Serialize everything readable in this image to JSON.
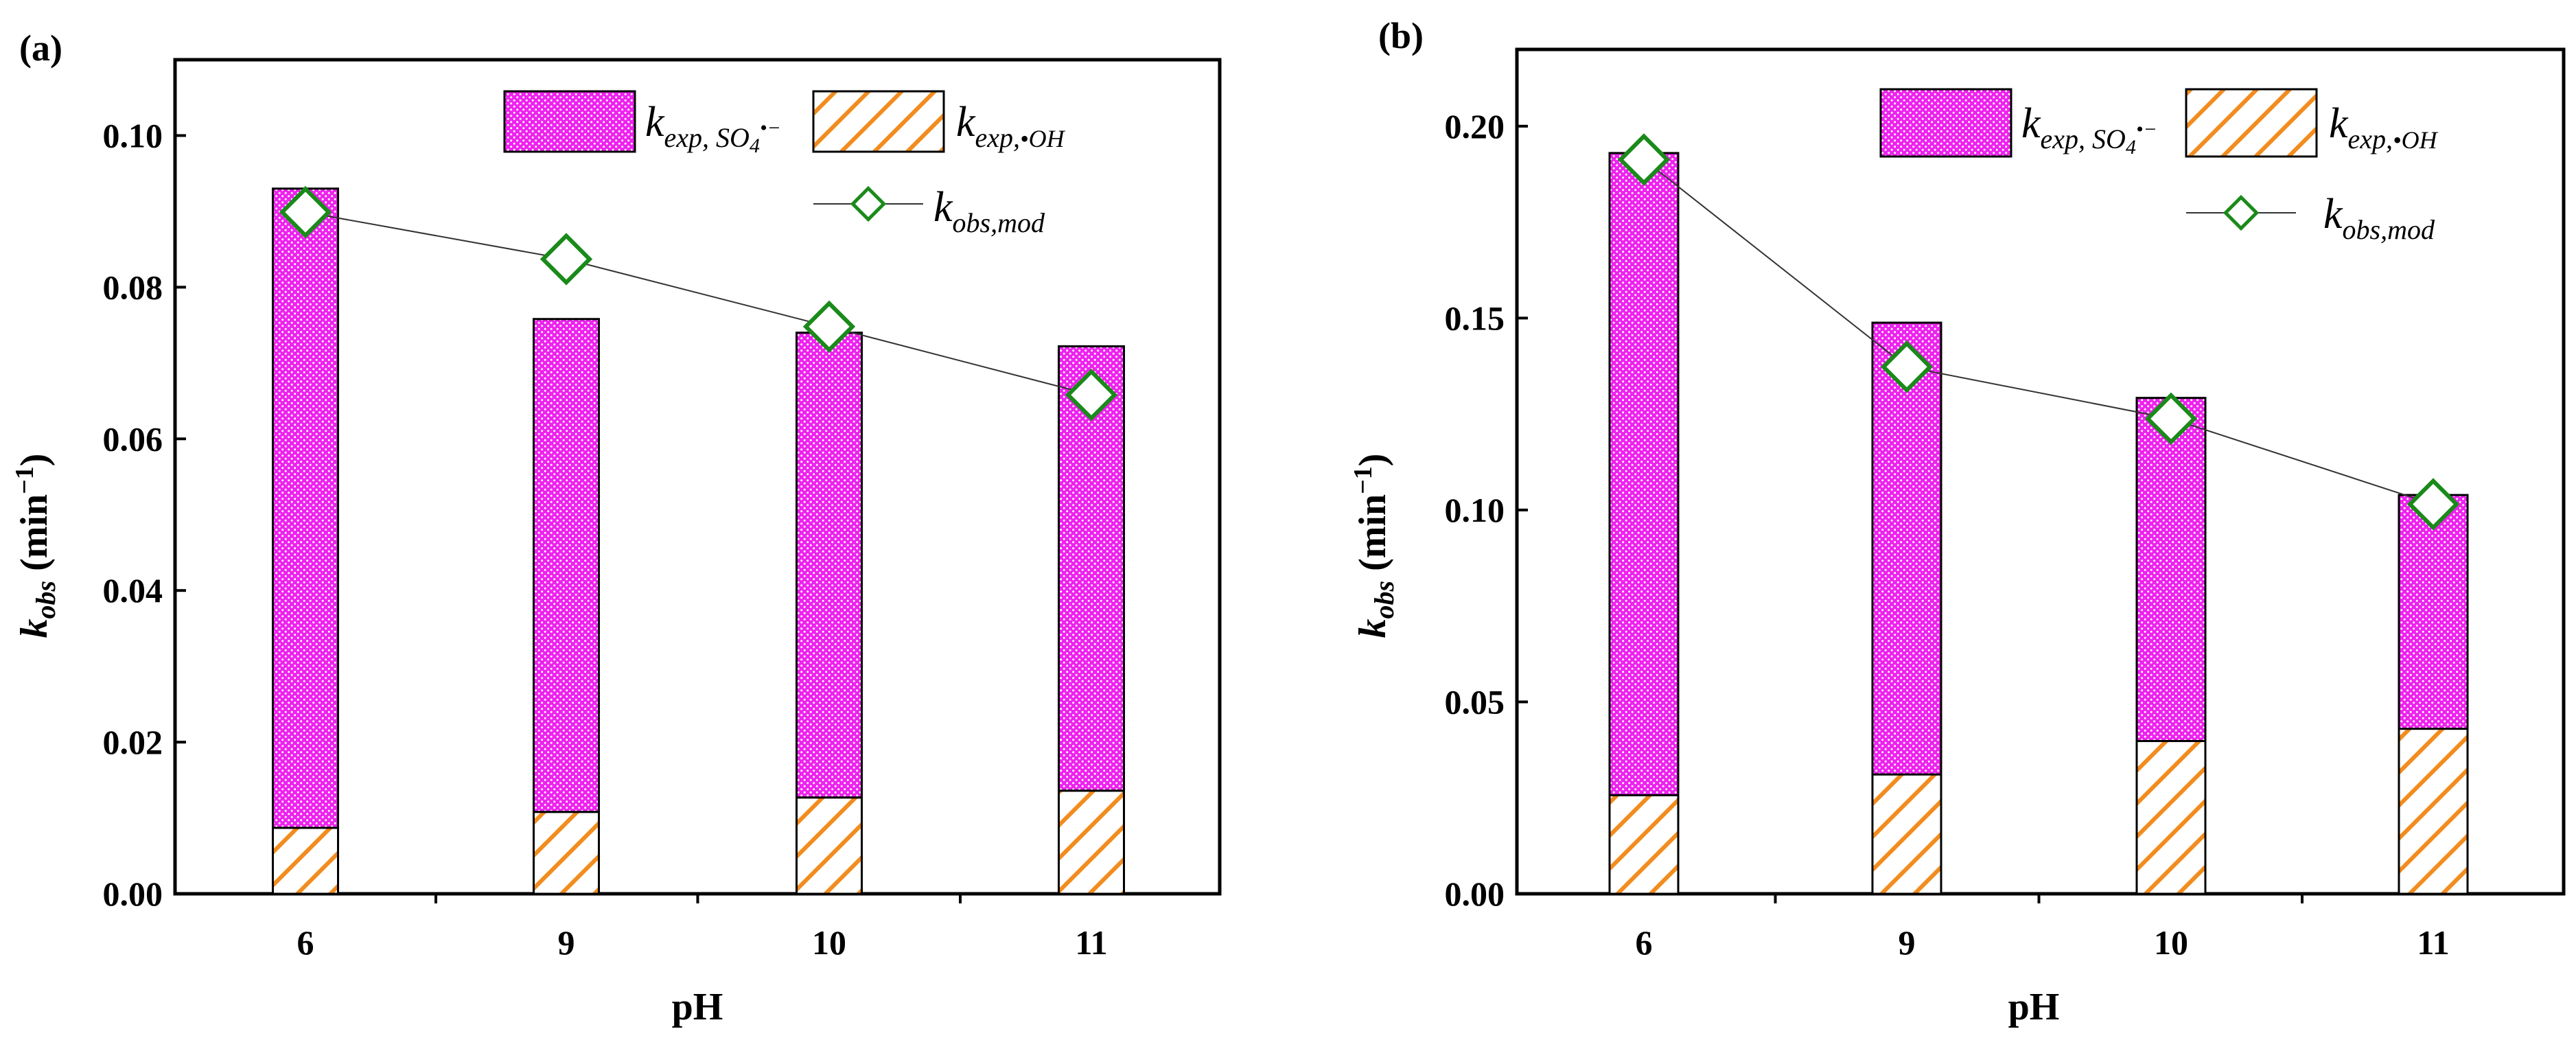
{
  "chart_data": [
    {
      "type": "bar",
      "panel_label": "(a)",
      "categories": [
        "6",
        "9",
        "10",
        "11"
      ],
      "series": [
        {
          "name": "k_exp,OH",
          "label_main": "k",
          "label_sub": "exp,",
          "label_rad": "•OH",
          "values": [
            0.0087,
            0.0108,
            0.0127,
            0.0136
          ]
        },
        {
          "name": "k_exp,SO4•−",
          "label_main": "k",
          "label_sub": "exp, SO",
          "label_sub4": "4",
          "label_sup": "•−",
          "values": [
            0.0843,
            0.065,
            0.0613,
            0.0586
          ]
        }
      ],
      "line": {
        "name": "k_obs,mod",
        "label_main": "k",
        "label_sub": "obs,mod",
        "values": [
          0.0899,
          0.0837,
          0.0748,
          0.0658
        ]
      },
      "stacked": true,
      "xlabel": "pH",
      "ylabel_main": "k",
      "ylabel_sub": "obs",
      "ylabel_unit": " (min",
      "ylabel_exp": "−1",
      "ylabel_close": ")",
      "ylim": [
        0,
        0.11
      ],
      "yticks": [
        "0.00",
        "0.02",
        "0.04",
        "0.06",
        "0.08",
        "0.10"
      ],
      "ytick_values": [
        0,
        0.02,
        0.04,
        0.06,
        0.08,
        0.1
      ],
      "legend_position": "top-right",
      "colors": {
        "so4": "#ee22ee",
        "oh_fill": "#ffffff",
        "oh_hatch": "#f28c1e",
        "marker": "#1a8a1a",
        "line": "#333333"
      }
    },
    {
      "type": "bar",
      "panel_label": "(b)",
      "categories": [
        "6",
        "9",
        "10",
        "11"
      ],
      "series": [
        {
          "name": "k_exp,OH",
          "label_main": "k",
          "label_sub": "exp,",
          "label_rad": "•OH",
          "values": [
            0.0257,
            0.0311,
            0.0398,
            0.043
          ]
        },
        {
          "name": "k_exp,SO4•−",
          "label_main": "k",
          "label_sub": "exp, SO",
          "label_sub4": "4",
          "label_sup": "•−",
          "values": [
            0.1673,
            0.1177,
            0.0894,
            0.0609
          ]
        }
      ],
      "line": {
        "name": "k_obs,mod",
        "label_main": "k",
        "label_sub": "obs,mod",
        "values": [
          0.1913,
          0.1373,
          0.1238,
          0.1015
        ]
      },
      "stacked": true,
      "xlabel": "pH",
      "ylabel_main": "k",
      "ylabel_sub": "obs",
      "ylabel_unit": " (min",
      "ylabel_exp": "−1",
      "ylabel_close": ")",
      "ylim": [
        0,
        0.22
      ],
      "yticks": [
        "0.00",
        "0.05",
        "0.10",
        "0.15",
        "0.20"
      ],
      "ytick_values": [
        0,
        0.05,
        0.1,
        0.15,
        0.2
      ],
      "legend_position": "top-right",
      "colors": {
        "so4": "#ee22ee",
        "oh_fill": "#ffffff",
        "oh_hatch": "#f28c1e",
        "marker": "#1a8a1a",
        "line": "#333333"
      }
    }
  ]
}
